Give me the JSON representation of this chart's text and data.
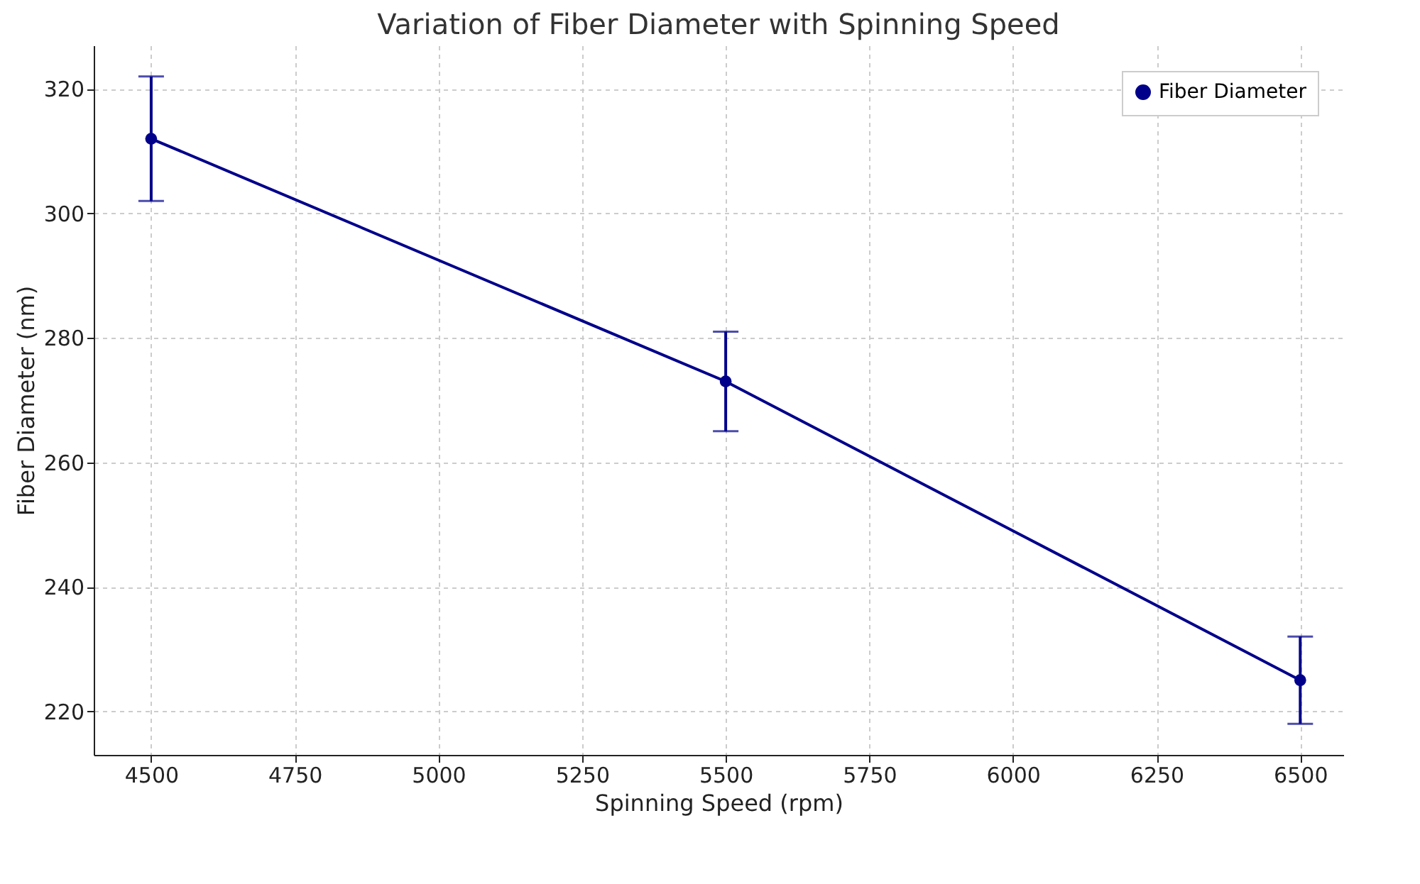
{
  "chart_data": {
    "type": "line",
    "title": "Variation of Fiber Diameter with Spinning Speed",
    "xlabel": "Spinning Speed (rpm)",
    "ylabel": "Fiber Diameter (nm)",
    "x": [
      4500,
      5500,
      6500
    ],
    "series": [
      {
        "name": "Fiber Diameter",
        "color": "#00008b",
        "values": [
          312,
          273,
          225
        ],
        "errors": [
          10,
          8,
          7
        ]
      }
    ],
    "xlim": [
      4400,
      6575
    ],
    "ylim": [
      213,
      327
    ],
    "xticks": [
      4500,
      4750,
      5000,
      5250,
      5500,
      5750,
      6000,
      6250,
      6500
    ],
    "yticks": [
      220,
      240,
      260,
      280,
      300,
      320
    ],
    "grid": true,
    "legend": "top right",
    "marker": "circle",
    "line_style": "solid"
  }
}
